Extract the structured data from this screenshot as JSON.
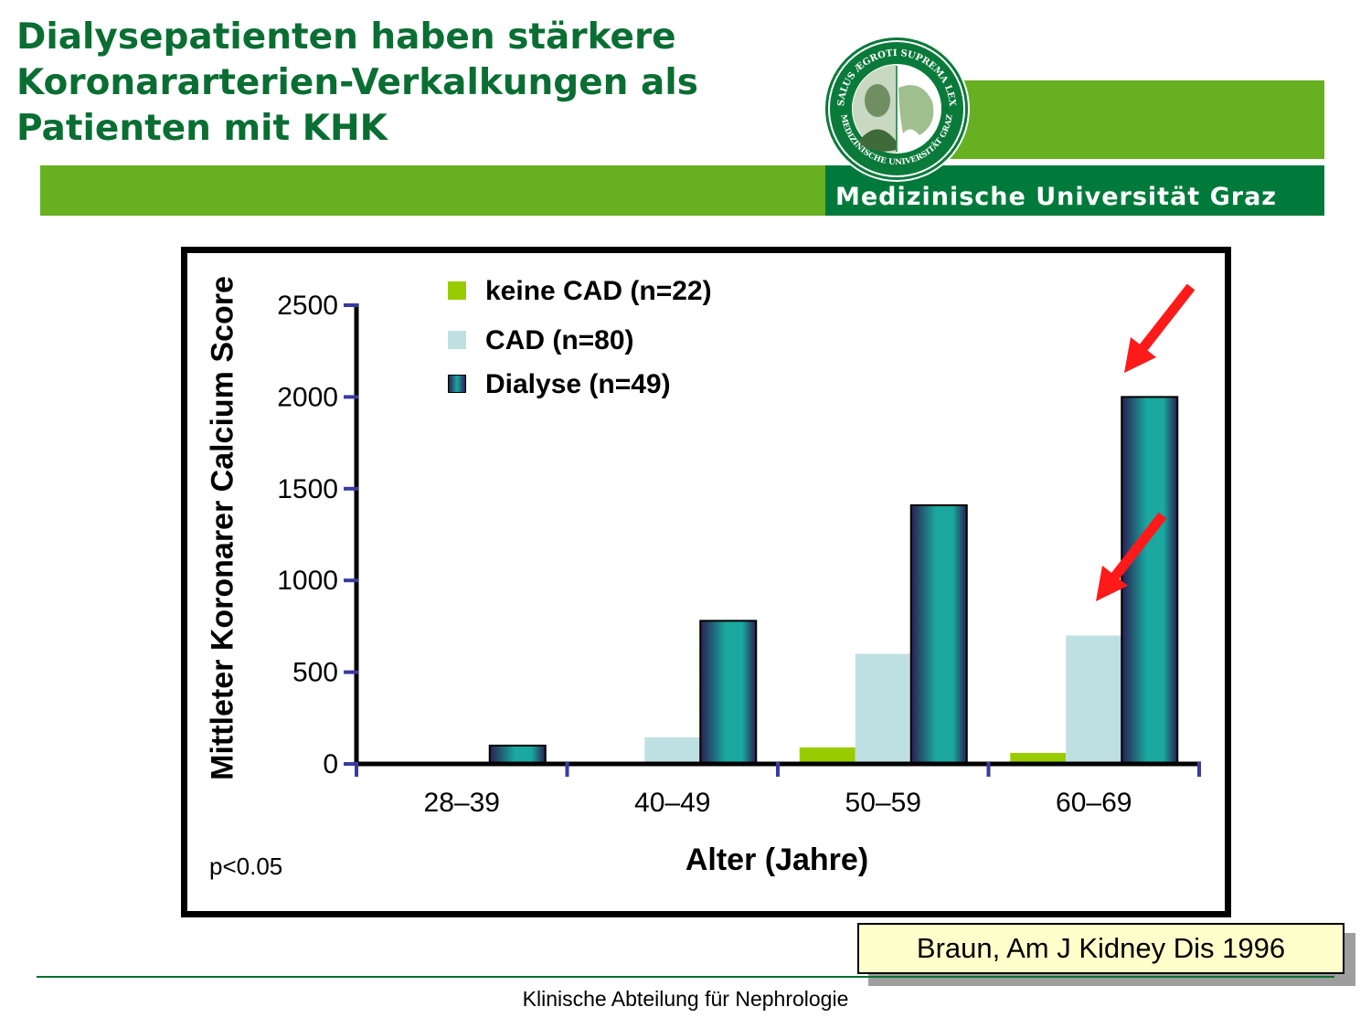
{
  "header": {
    "title_lines": [
      "Dialysepatienten haben stärkere",
      "Koronararterien-Verkalkungen als",
      "Patienten mit KHK"
    ],
    "university_name": "Medizinische Universität Graz",
    "seal_text_top": "SALUS ÆGROTI SUPREMA LEX",
    "seal_text_bottom": "MEDIZINISCHE UNIVERSITÄT GRAZ"
  },
  "chart_data": {
    "type": "bar",
    "ylabel": "Mittleter Koronarer Calcium Score",
    "xlabel": "Alter (Jahre)",
    "categories": [
      "28–39",
      "40–49",
      "50–59",
      "60–69"
    ],
    "ylim": [
      0,
      2500
    ],
    "yticks": [
      0,
      500,
      1000,
      1500,
      2000,
      2500
    ],
    "ytick_labels": [
      "0",
      "500",
      "1000",
      "1500",
      "2000",
      "2500"
    ],
    "series": [
      {
        "name": "keine CAD (n=22)",
        "color": "#99cc00",
        "values": [
          0,
          0,
          90,
          60
        ]
      },
      {
        "name": "CAD (n=80)",
        "color": "#bfe0e2",
        "values": [
          0,
          145,
          600,
          700
        ]
      },
      {
        "name": "Dialyse (n=49)",
        "color": "#1aa8a0",
        "values": [
          100,
          780,
          1410,
          2000
        ]
      }
    ],
    "legend_position": "top-left",
    "grid": false,
    "annotations": [
      "p<0.05"
    ],
    "arrows": [
      {
        "points_to": "Dialyse 60–69",
        "color": "#ff0000"
      },
      {
        "points_to": "CAD 60–69",
        "color": "#ff0000"
      }
    ]
  },
  "reference": "Braun, Am J Kidney Dis 1996",
  "footer": "Klinische Abteilung für Nephrologie"
}
